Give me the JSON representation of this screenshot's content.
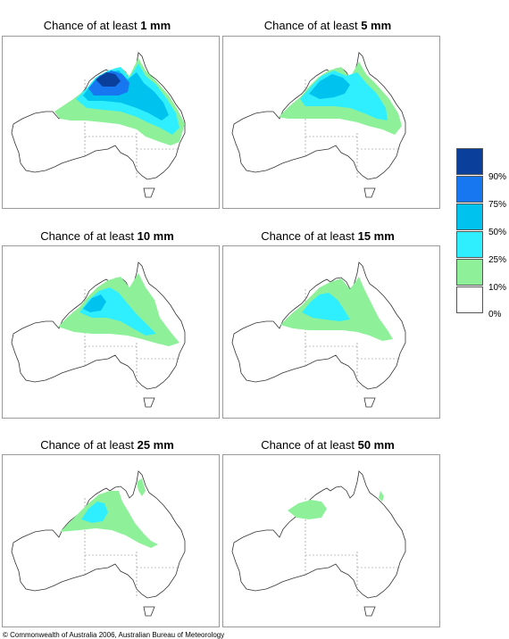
{
  "title_prefix": "Chance of at least",
  "panels": [
    {
      "amount": "1 mm"
    },
    {
      "amount": "5 mm"
    },
    {
      "amount": "10 mm"
    },
    {
      "amount": "15 mm"
    },
    {
      "amount": "25 mm"
    },
    {
      "amount": "50 mm"
    }
  ],
  "legend": {
    "labels": [
      "90%",
      "75%",
      "50%",
      "25%",
      "10%",
      "0%"
    ],
    "colors": [
      "#0a3f9c",
      "#1677f0",
      "#00c2ef",
      "#2fefff",
      "#8ef19a",
      "#ffffff"
    ]
  },
  "footer": "© Commonwealth of Australia 2006, Australian Bureau of Meteorology"
}
